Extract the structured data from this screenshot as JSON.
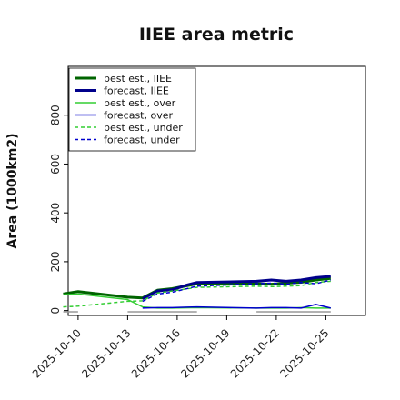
{
  "chart_data": {
    "type": "line",
    "title": "IIEE area metric",
    "xlabel": "",
    "ylabel": "Area (1000km2)",
    "ylim": [
      -20,
      1000
    ],
    "yticks": [
      0,
      200,
      400,
      600,
      800
    ],
    "xlim": [
      -1,
      29
    ],
    "x_tick_positions": [
      0,
      5,
      10,
      15,
      20,
      25
    ],
    "x_tick_labels": [
      "2025-10-10",
      "2025-10-13",
      "2025-10-16",
      "2025-10-19",
      "2025-10-22",
      "2025-10-25"
    ],
    "x_tick_colors": [
      "#000000",
      "#000000",
      "#228b22",
      "#000000",
      "#000000",
      "#000000"
    ],
    "legend_position": "top-left",
    "grid": false,
    "series": [
      {
        "name": "best est., IIEE",
        "color": "#006400",
        "style": "solid",
        "width": 3,
        "x": [
          -1.5,
          0,
          5,
          6.5,
          8,
          9.5,
          12,
          18,
          19.5,
          21,
          22.5,
          24,
          25.5
        ],
        "y": [
          68,
          78,
          55,
          52,
          83,
          90,
          110,
          110,
          108,
          112,
          116,
          125,
          132
        ]
      },
      {
        "name": "forecast, IIEE",
        "color": "#00008b",
        "style": "solid",
        "width": 3,
        "x": [
          6.5,
          8,
          9.5,
          11,
          12,
          18,
          19.5,
          21,
          22.5,
          24,
          25.5
        ],
        "y": [
          48,
          80,
          85,
          105,
          115,
          120,
          125,
          120,
          125,
          135,
          140
        ]
      },
      {
        "name": "best est., over",
        "color": "#32cd32",
        "style": "solid",
        "width": 1.5,
        "x": [
          -1.5,
          0,
          5,
          6.5,
          8,
          9.5,
          12,
          18,
          19.5,
          21,
          22.5,
          24,
          25.5
        ],
        "y": [
          65,
          68,
          45,
          15,
          10,
          10,
          12,
          10,
          10,
          10,
          12,
          10,
          10
        ]
      },
      {
        "name": "forecast, over",
        "color": "#0000cd",
        "style": "solid",
        "width": 1.5,
        "x": [
          6.5,
          8,
          9.5,
          11,
          12,
          18,
          19.5,
          21,
          22.5,
          24,
          25.5
        ],
        "y": [
          10,
          12,
          12,
          14,
          15,
          10,
          12,
          12,
          10,
          25,
          10
        ]
      },
      {
        "name": "best est., under",
        "color": "#32cd32",
        "style": "dashed",
        "width": 1.5,
        "x": [
          -1.5,
          0,
          5,
          6.5,
          8,
          9.5,
          12,
          18,
          19.5,
          21,
          22.5,
          24,
          25.5
        ],
        "y": [
          15,
          18,
          38,
          40,
          72,
          80,
          95,
          100,
          98,
          100,
          102,
          115,
          120
        ]
      },
      {
        "name": "forecast, under",
        "color": "#0000cd",
        "style": "dashed",
        "width": 1.5,
        "x": [
          6.5,
          8,
          9.5,
          11,
          12,
          18,
          19.5,
          21,
          22.5,
          24,
          25.5
        ],
        "y": [
          38,
          68,
          75,
          90,
          100,
          110,
          112,
          108,
          115,
          110,
          125
        ]
      }
    ],
    "baseline_segments": {
      "color": "#999999",
      "y": -5,
      "ranges": [
        [
          -1.5,
          0
        ],
        [
          5,
          12
        ],
        [
          18,
          25.5
        ]
      ]
    }
  }
}
